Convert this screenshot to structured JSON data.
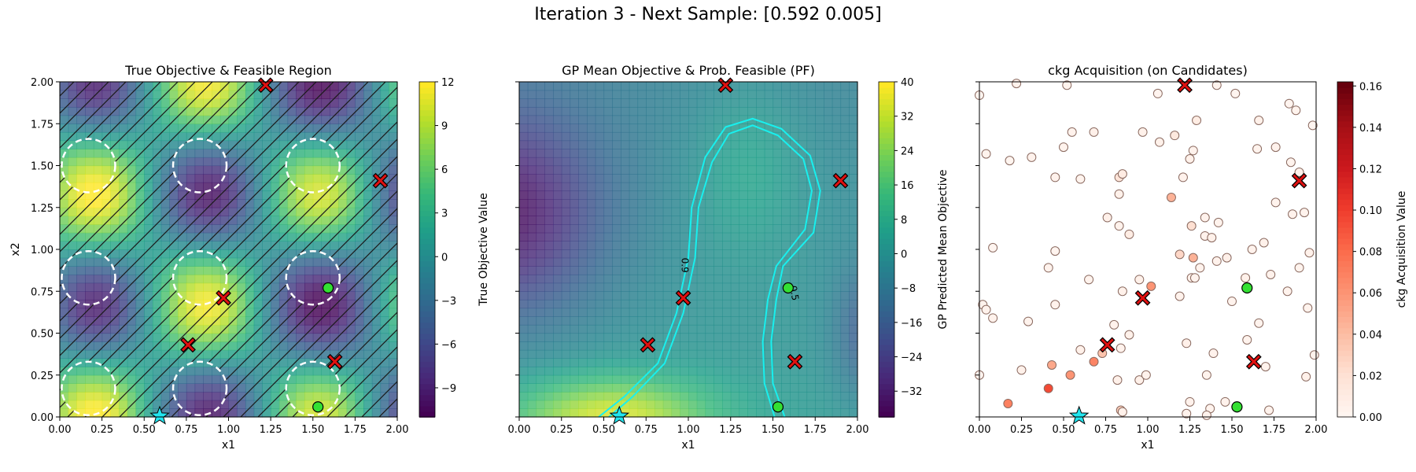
{
  "figure": {
    "title": "Iteration 3 - Next Sample: [0.592 0.005]"
  },
  "chart_data": [
    {
      "type": "heatmap",
      "title": "True Objective & Feasible Region",
      "xlabel": "x1",
      "ylabel": "x2",
      "xlim": [
        0,
        2
      ],
      "ylim": [
        0,
        2
      ],
      "xticks": [
        "0.00",
        "0.25",
        "0.50",
        "0.75",
        "1.00",
        "1.25",
        "1.50",
        "1.75",
        "2.00"
      ],
      "yticks": [
        "0.00",
        "0.25",
        "0.50",
        "0.75",
        "1.00",
        "1.25",
        "1.50",
        "1.75",
        "2.00"
      ],
      "colorbar": {
        "label": "True Objective Value",
        "ticks": [
          "12",
          "9",
          "6",
          "3",
          "0",
          "−3",
          "−6",
          "−9"
        ],
        "range": [
          -11,
          12
        ],
        "colormap": "viridis"
      },
      "infeasible_hatching": true,
      "feasible_regions_centers": [
        [
          0.17,
          0.17
        ],
        [
          0.17,
          0.83
        ],
        [
          0.17,
          1.5
        ],
        [
          0.83,
          0.17
        ],
        [
          0.83,
          0.83
        ],
        [
          0.83,
          1.5
        ],
        [
          1.5,
          0.17
        ],
        [
          1.5,
          0.83
        ],
        [
          1.5,
          1.5
        ]
      ],
      "feasible_points": [
        [
          1.59,
          0.77
        ],
        [
          1.53,
          0.06
        ]
      ],
      "infeasible_points": [
        [
          1.22,
          1.98
        ],
        [
          1.9,
          1.41
        ],
        [
          0.97,
          0.71
        ],
        [
          0.76,
          0.43
        ],
        [
          1.63,
          0.33
        ]
      ],
      "next_sample": [
        0.592,
        0.005
      ]
    },
    {
      "type": "heatmap",
      "title": "GP Mean Objective & Prob. Feasible (PF)",
      "xlabel": "x1",
      "xlim": [
        0,
        2
      ],
      "ylim": [
        0,
        2
      ],
      "xticks": [
        "0.00",
        "0.25",
        "0.50",
        "0.75",
        "1.00",
        "1.25",
        "1.50",
        "1.75",
        "2.00"
      ],
      "colorbar": {
        "label": "GP Predicted Mean Objective",
        "ticks": [
          "40",
          "32",
          "24",
          "16",
          "8",
          "0",
          "−8",
          "−16",
          "−24",
          "−32"
        ],
        "range": [
          -38,
          40
        ],
        "colormap": "viridis"
      },
      "pf_contour_labels": [
        "0.9",
        "0.5"
      ],
      "feasible_points": [
        [
          1.59,
          0.77
        ],
        [
          1.53,
          0.06
        ]
      ],
      "infeasible_points": [
        [
          1.22,
          1.98
        ],
        [
          1.9,
          1.41
        ],
        [
          0.97,
          0.71
        ],
        [
          0.76,
          0.43
        ],
        [
          1.63,
          0.33
        ]
      ],
      "next_sample": [
        0.592,
        0.005
      ]
    },
    {
      "type": "scatter",
      "title": "ckg Acquisition (on Candidates)",
      "xlabel": "x1",
      "xlim": [
        0,
        2
      ],
      "ylim": [
        0,
        2
      ],
      "xticks": [
        "0.00",
        "0.25",
        "0.50",
        "0.75",
        "1.00",
        "1.25",
        "1.50",
        "1.75",
        "2.00"
      ],
      "colorbar": {
        "label": "ckg Acquisition Value",
        "ticks": [
          "0.16",
          "0.14",
          "0.12",
          "0.10",
          "0.08",
          "0.06",
          "0.04",
          "0.02",
          "0.00"
        ],
        "range": [
          0,
          0.162
        ],
        "colormap": "Reds"
      },
      "candidates": [
        [
          0.0,
          1.92,
          0.0
        ],
        [
          0.22,
          1.99,
          0.003
        ],
        [
          0.52,
          1.98,
          0.002
        ],
        [
          1.06,
          1.93,
          0.001
        ],
        [
          1.41,
          1.98,
          0.002
        ],
        [
          1.52,
          1.93,
          0.0
        ],
        [
          1.84,
          1.87,
          0.001
        ],
        [
          1.88,
          1.83,
          0.002
        ],
        [
          1.98,
          1.74,
          0.0
        ],
        [
          0.55,
          1.7,
          0.003
        ],
        [
          0.68,
          1.7,
          0.005
        ],
        [
          0.97,
          1.7,
          0.004
        ],
        [
          1.29,
          1.77,
          0.008
        ],
        [
          1.66,
          1.77,
          0.004
        ],
        [
          0.04,
          1.57,
          0.002
        ],
        [
          0.18,
          1.53,
          0.0
        ],
        [
          0.31,
          1.55,
          0.003
        ],
        [
          0.5,
          1.61,
          0.002
        ],
        [
          1.07,
          1.64,
          0.004
        ],
        [
          1.16,
          1.68,
          0.012
        ],
        [
          1.27,
          1.59,
          0.003
        ],
        [
          1.25,
          1.54,
          0.004
        ],
        [
          1.65,
          1.6,
          0.002
        ],
        [
          1.76,
          1.61,
          0.003
        ],
        [
          1.85,
          1.52,
          0.002
        ],
        [
          1.9,
          1.46,
          0.004
        ],
        [
          0.45,
          1.43,
          0.003
        ],
        [
          0.6,
          1.42,
          0.002
        ],
        [
          0.83,
          1.43,
          0.016
        ],
        [
          0.85,
          1.45,
          0.009
        ],
        [
          0.83,
          1.33,
          0.004
        ],
        [
          1.21,
          1.43,
          0.003
        ],
        [
          0.76,
          1.19,
          0.005
        ],
        [
          0.83,
          1.14,
          0.003
        ],
        [
          1.14,
          1.31,
          0.045
        ],
        [
          1.26,
          1.14,
          0.02
        ],
        [
          1.34,
          1.19,
          0.003
        ],
        [
          1.42,
          1.16,
          0.002
        ],
        [
          1.76,
          1.28,
          0.002
        ],
        [
          1.86,
          1.21,
          0.003
        ],
        [
          1.93,
          1.22,
          0.002
        ],
        [
          0.89,
          1.09,
          0.008
        ],
        [
          1.34,
          1.08,
          0.003
        ],
        [
          1.38,
          1.07,
          0.004
        ],
        [
          1.69,
          1.04,
          0.004
        ],
        [
          1.62,
          1.0,
          0.003
        ],
        [
          1.96,
          0.98,
          0.004
        ],
        [
          0.08,
          1.01,
          0.0
        ],
        [
          0.45,
          0.99,
          0.001
        ],
        [
          1.19,
          0.97,
          0.025
        ],
        [
          1.27,
          0.95,
          0.045
        ],
        [
          1.31,
          0.89,
          0.003
        ],
        [
          1.41,
          0.93,
          0.003
        ],
        [
          1.47,
          0.95,
          0.005
        ],
        [
          1.58,
          0.83,
          0.004
        ],
        [
          1.73,
          0.85,
          0.003
        ],
        [
          1.9,
          0.89,
          0.002
        ],
        [
          0.41,
          0.89,
          0.003
        ],
        [
          0.65,
          0.82,
          0.002
        ],
        [
          0.95,
          0.82,
          0.004
        ],
        [
          1.26,
          0.83,
          0.004
        ],
        [
          1.28,
          0.83,
          0.002
        ],
        [
          1.02,
          0.78,
          0.06
        ],
        [
          1.19,
          0.72,
          0.003
        ],
        [
          1.83,
          0.75,
          0.002
        ],
        [
          1.5,
          0.69,
          0.002
        ],
        [
          1.95,
          0.65,
          0.002
        ],
        [
          0.02,
          0.67,
          0.003
        ],
        [
          0.04,
          0.64,
          0.003
        ],
        [
          0.45,
          0.67,
          0.003
        ],
        [
          0.85,
          0.75,
          0.004
        ],
        [
          0.08,
          0.59,
          0.003
        ],
        [
          0.29,
          0.57,
          0.002
        ],
        [
          0.8,
          0.55,
          0.003
        ],
        [
          0.89,
          0.49,
          0.004
        ],
        [
          1.59,
          0.46,
          0.002
        ],
        [
          1.66,
          0.56,
          0.002
        ],
        [
          1.99,
          0.37,
          0.003
        ],
        [
          1.39,
          0.38,
          0.003
        ],
        [
          0.6,
          0.4,
          0.004
        ],
        [
          0.73,
          0.38,
          0.036
        ],
        [
          0.68,
          0.33,
          0.068
        ],
        [
          0.84,
          0.41,
          0.003
        ],
        [
          1.23,
          0.44,
          0.005
        ],
        [
          1.94,
          0.24,
          0.004
        ],
        [
          0.43,
          0.31,
          0.05
        ],
        [
          0.25,
          0.28,
          0.004
        ],
        [
          0.95,
          0.22,
          0.004
        ],
        [
          0.99,
          0.25,
          0.003
        ],
        [
          1.35,
          0.25,
          0.002
        ],
        [
          1.7,
          0.3,
          0.002
        ],
        [
          0.41,
          0.17,
          0.095
        ],
        [
          0.54,
          0.25,
          0.06
        ],
        [
          0.82,
          0.22,
          0.004
        ],
        [
          0.0,
          0.25,
          0.001
        ],
        [
          0.17,
          0.08,
          0.07
        ],
        [
          1.25,
          0.09,
          0.003
        ],
        [
          1.37,
          0.05,
          0.002
        ],
        [
          1.46,
          0.09,
          0.003
        ],
        [
          0.84,
          0.04,
          0.03
        ],
        [
          0.85,
          0.03,
          0.004
        ],
        [
          1.23,
          0.02,
          0.003
        ],
        [
          1.35,
          0.01,
          0.003
        ],
        [
          1.72,
          0.04,
          0.002
        ]
      ],
      "feasible_points": [
        [
          1.59,
          0.77
        ],
        [
          1.53,
          0.06
        ]
      ],
      "infeasible_points": [
        [
          1.22,
          1.98
        ],
        [
          1.9,
          1.41
        ],
        [
          0.97,
          0.71
        ],
        [
          0.76,
          0.43
        ],
        [
          1.63,
          0.33
        ]
      ],
      "next_sample": [
        0.592,
        0.005
      ]
    }
  ]
}
